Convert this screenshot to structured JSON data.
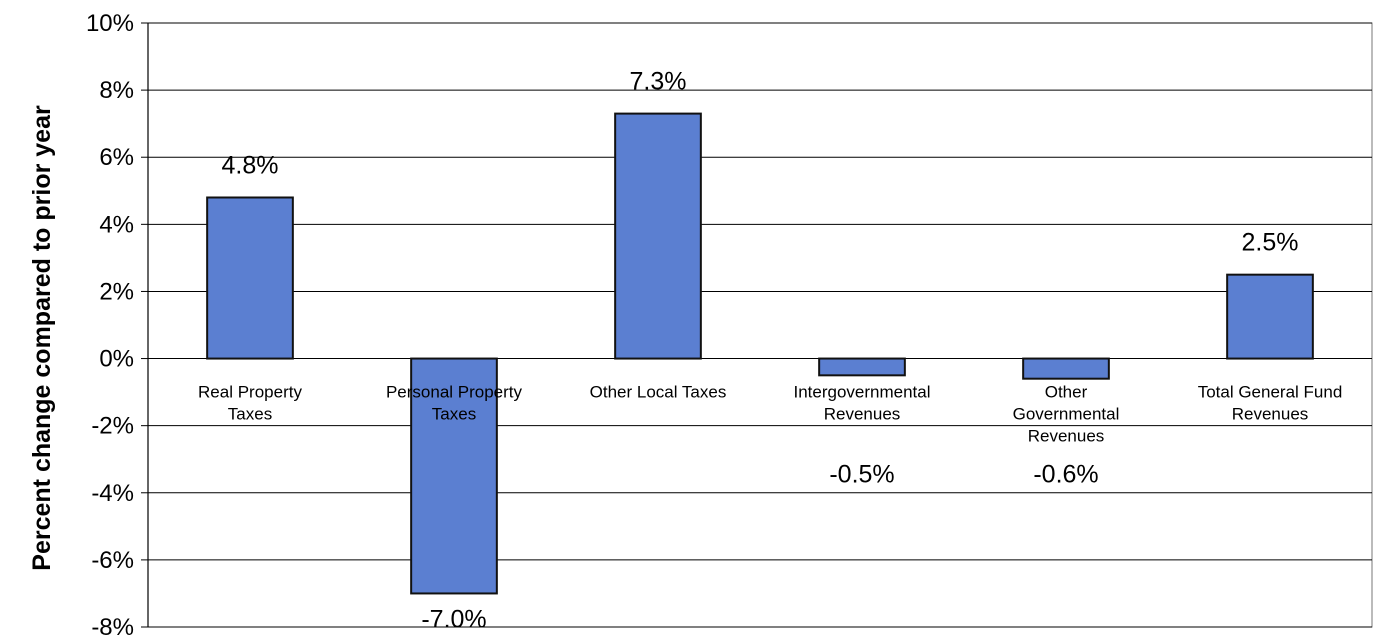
{
  "chart_data": {
    "type": "bar",
    "title": "",
    "xlabel": "",
    "ylabel": "Percent change compared to prior year",
    "ylim": [
      -8,
      10
    ],
    "ytick_step": 2,
    "ytick_suffix": "%",
    "grid": true,
    "legend": "none",
    "categories": [
      [
        "Real Property",
        "Taxes"
      ],
      [
        "Personal Property",
        "Taxes"
      ],
      [
        "Other Local Taxes"
      ],
      [
        "Intergovernmental",
        "Revenues"
      ],
      [
        "Other",
        "Governmental",
        "Revenues"
      ],
      [
        "Total General Fund",
        "Revenues"
      ]
    ],
    "values": [
      4.8,
      -7.0,
      7.3,
      -0.5,
      -0.6,
      2.5
    ],
    "data_labels": [
      "4.8%",
      "-7.0%",
      "7.3%",
      "-0.5%",
      "-0.6%",
      "2.5%"
    ],
    "colors": {
      "bar_fill": "#5B7FD1",
      "bar_stroke": "#111111",
      "grid": "#000000"
    }
  }
}
